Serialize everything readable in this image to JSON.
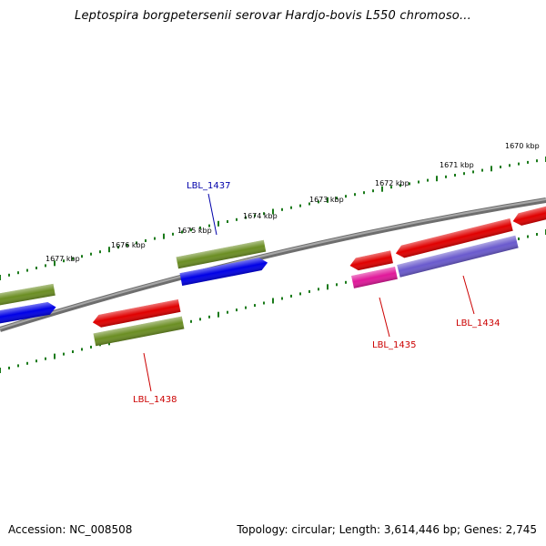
{
  "title": "Leptospira borgpetersenii serovar Hardjo-bovis L550 chromoso...",
  "accession": "Accession: NC_008508",
  "stats": "Topology: circular; Length: 3,614,446 bp; Genes: 2,745",
  "colors": {
    "backbone": "#8a8a8a",
    "tick": "#1a7a1a",
    "cds_red": "#e00000",
    "cds_blue": "#0000e6",
    "cds_green": "#6b8e23",
    "cds_magenta": "#e0189a",
    "cds_lavender": "#6a5acd",
    "label_red": "#cc0000",
    "label_blue": "#0000aa"
  },
  "ticks": [
    "1677 kbp",
    "1676 kbp",
    "1675 kbp",
    "1674 kbp",
    "1673 kbp",
    "1672 kbp",
    "1671 kbp",
    "1670 kbp"
  ],
  "gene_labels": [
    {
      "name": "LBL_1437",
      "color": "label_blue"
    },
    {
      "name": "LBL_1438",
      "color": "label_red"
    },
    {
      "name": "LBL_1435",
      "color": "label_red"
    },
    {
      "name": "LBL_1434",
      "color": "label_red"
    }
  ]
}
